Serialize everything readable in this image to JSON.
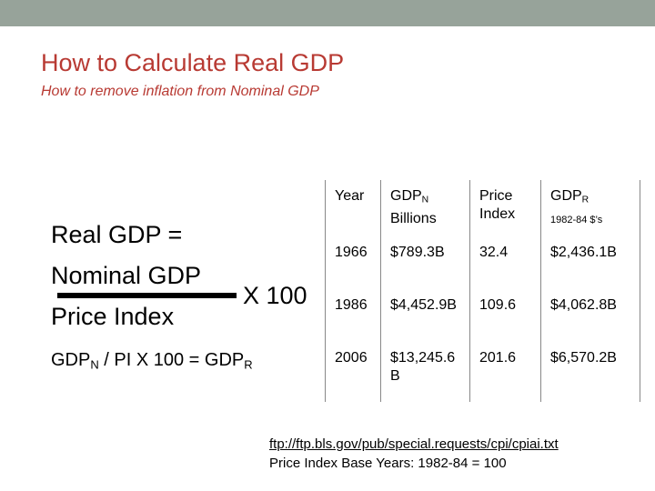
{
  "title": "How to Calculate Real GDP",
  "subtitle": "How to remove inflation from Nominal GDP",
  "formula": {
    "line1": "Real GDP =",
    "line2": "Nominal GDP",
    "line3": "Price Index",
    "times": "X 100"
  },
  "equation2": {
    "part1": "GDP",
    "sub1": "N",
    "part2": " / PI  X 100 = GDP",
    "sub2": "R"
  },
  "table": {
    "header": {
      "year": "Year",
      "gdpn": "GDP",
      "gdpn_sub": "N",
      "gdpn_unit": "Billions",
      "pi_line1": "Price",
      "pi_line2": "Index",
      "gdpr": "GDP",
      "gdpr_sub": "R",
      "gdpr_unit": "1982-84 $’s"
    },
    "rows": [
      {
        "year": "1966",
        "gdpn": "$789.3B",
        "pi": "32.4",
        "gdpr": "$2,436.1B"
      },
      {
        "year": "1986",
        "gdpn": "$4,452.9B",
        "pi": "109.6",
        "gdpr": "$4,062.8B"
      },
      {
        "year": "2006",
        "gdpn": "$13,245.6 B",
        "pi": "201.6",
        "gdpr": "$6,570.2B"
      }
    ]
  },
  "source": {
    "link": "ftp://ftp.bls.gov/pub/special.requests/cpi/cpiai.txt",
    "note": "Price Index Base Years: 1982-84 = 100"
  },
  "colors": {
    "title": "#b83a33",
    "topbar": "#97a39a"
  }
}
